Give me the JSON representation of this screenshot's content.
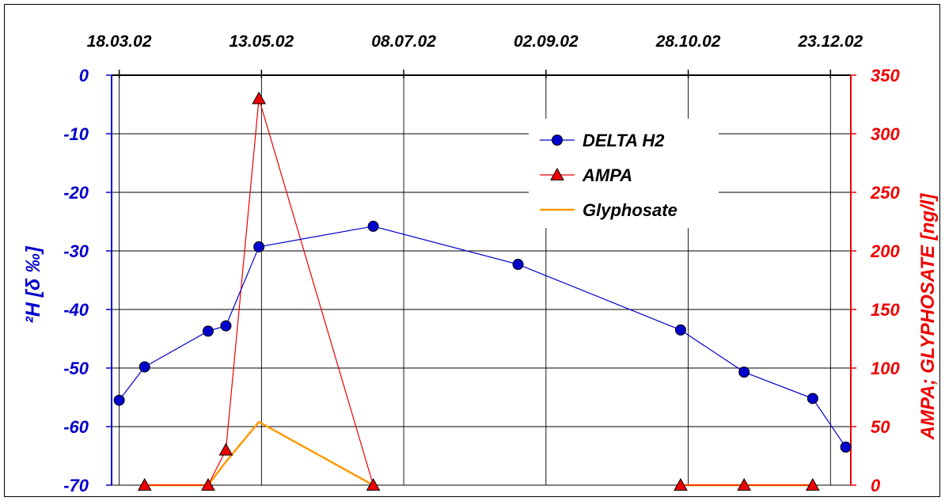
{
  "chart_data": {
    "type": "line",
    "title": "",
    "x_tick_labels": [
      "18.03.02",
      "13.05.02",
      "08.07.02",
      "02.09.02",
      "28.10.02",
      "23.12.02"
    ],
    "x_tick_dates": [
      "2002-03-18",
      "2002-05-13",
      "2002-07-08",
      "2002-09-02",
      "2002-10-28",
      "2002-12-23"
    ],
    "xlim": [
      "2002-03-15",
      "2002-12-31"
    ],
    "x_axis_position": "top",
    "ylabel_left": "²H [δ ‰]",
    "ylabel_right": "AMPA; GLYPHOSATE [ng/l]",
    "ylim_left": [
      -70,
      0
    ],
    "ylim_right": [
      0,
      350
    ],
    "y_ticks_left": [
      0,
      -10,
      -20,
      -30,
      -40,
      -50,
      -60,
      -70
    ],
    "y_ticks_right": [
      350,
      300,
      250,
      200,
      150,
      100,
      50,
      0
    ],
    "grid": true,
    "legend_position": "top-right",
    "series": [
      {
        "name": "DELTA H2",
        "axis": "left",
        "color": "#0000cc",
        "marker": "circle",
        "points": [
          {
            "x": "2002-03-18",
            "y": -55.5
          },
          {
            "x": "2002-03-28",
            "y": -49.8
          },
          {
            "x": "2002-04-22",
            "y": -43.7
          },
          {
            "x": "2002-04-29",
            "y": -42.8
          },
          {
            "x": "2002-05-12",
            "y": -29.3
          },
          {
            "x": "2002-06-26",
            "y": -25.8
          },
          {
            "x": "2002-08-22",
            "y": -32.3
          },
          {
            "x": "2002-10-25",
            "y": -43.5
          },
          {
            "x": "2002-11-19",
            "y": -50.7
          },
          {
            "x": "2002-12-16",
            "y": -55.2
          },
          {
            "x": "2002-12-29",
            "y": -63.5
          }
        ]
      },
      {
        "name": "AMPA",
        "axis": "right",
        "color": "#ee0000",
        "marker": "triangle",
        "points": [
          {
            "x": "2002-03-28",
            "y": 0
          },
          {
            "x": "2002-04-22",
            "y": 0
          },
          {
            "x": "2002-04-29",
            "y": 30
          },
          {
            "x": "2002-05-12",
            "y": 330
          },
          {
            "x": "2002-06-26",
            "y": 0
          },
          {
            "x": "2002-10-25",
            "y": 0
          },
          {
            "x": "2002-11-19",
            "y": 0
          },
          {
            "x": "2002-12-16",
            "y": 0
          }
        ]
      },
      {
        "name": "Glyphosate",
        "axis": "right",
        "color": "#ff9900",
        "marker": "none",
        "segments": [
          [
            {
              "x": "2002-03-28",
              "y": 0
            },
            {
              "x": "2002-04-22",
              "y": 0
            },
            {
              "x": "2002-04-29",
              "y": 20
            },
            {
              "x": "2002-05-12",
              "y": 54
            },
            {
              "x": "2002-06-26",
              "y": 0
            }
          ],
          [
            {
              "x": "2002-10-25",
              "y": 0
            },
            {
              "x": "2002-11-19",
              "y": 0
            },
            {
              "x": "2002-12-16",
              "y": 0
            }
          ]
        ]
      }
    ]
  }
}
